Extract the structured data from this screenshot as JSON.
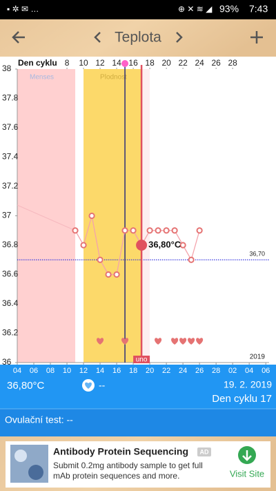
{
  "status_bar": {
    "time": "7:43",
    "battery": "93%"
  },
  "app_bar": {
    "title": "Teplota"
  },
  "chart_data": {
    "type": "line",
    "x_label": "Den cyklu",
    "xlim": [
      2,
      32.4
    ],
    "xticks": [
      8,
      10,
      12,
      14,
      16,
      18,
      20,
      22,
      24,
      26,
      28
    ],
    "date_ticks": [
      {
        "value": 2,
        "label": "04"
      },
      {
        "value": 4,
        "label": "06"
      },
      {
        "value": 6,
        "label": "08"
      },
      {
        "value": 8,
        "label": "10"
      },
      {
        "value": 10,
        "label": "12"
      },
      {
        "value": 12,
        "label": "14"
      },
      {
        "value": 14,
        "label": "16"
      },
      {
        "value": 16,
        "label": "18"
      },
      {
        "value": 18,
        "label": "20"
      },
      {
        "value": 20,
        "label": "22"
      },
      {
        "value": 22,
        "label": "24"
      },
      {
        "value": 24,
        "label": "26"
      },
      {
        "value": 26,
        "label": "28"
      },
      {
        "value": 28,
        "label": "02"
      },
      {
        "value": 30,
        "label": "04"
      },
      {
        "value": 32,
        "label": "06"
      }
    ],
    "ylim": [
      36,
      38
    ],
    "yticks": [
      36,
      36.2,
      36.4,
      36.6,
      36.8,
      37,
      37.2,
      37.4,
      37.6,
      37.8,
      38
    ],
    "series": [
      {
        "color": "#e57373",
        "x": [
          9,
          10,
          11,
          12,
          13,
          14,
          15,
          16,
          17,
          18,
          19,
          20,
          21,
          22,
          23,
          24
        ],
        "values": [
          36.9,
          36.8,
          37.0,
          36.7,
          36.6,
          36.6,
          36.9,
          36.9,
          36.8,
          36.9,
          36.9,
          36.9,
          36.9,
          36.8,
          36.7,
          36.9
        ]
      }
    ],
    "highlight": {
      "x": 17,
      "value": 36.8,
      "label": "36,80°C",
      "color": "#e0505f"
    },
    "reference_line": {
      "value": 36.7,
      "label": "36,70",
      "color": "#3a3adf"
    },
    "zones": [
      {
        "label": "Menses",
        "start": 1,
        "end": 9,
        "color": "#ffd0d0"
      },
      {
        "label": "Plodnost",
        "start": 10,
        "end": 17,
        "color": "#fcd96a"
      }
    ],
    "ovulation_day": 15,
    "today": {
      "x": 17,
      "label": "uno"
    },
    "hearts": [
      12,
      15,
      19,
      21,
      22,
      23,
      24
    ],
    "year": "2019"
  },
  "summary": {
    "temperature": "36,80°C",
    "heart": "--",
    "date": "19. 2. 2019",
    "cycle_day": "Den cyklu 17",
    "ovulation_test": "Ovulační test: --"
  },
  "ad": {
    "title": "Antibody Protein Sequencing",
    "badge": "AD",
    "text_lines": [
      "Submit 0.2mg antibody sample to get full",
      "mAb protein sequences and more."
    ],
    "action": "Visit Site"
  }
}
